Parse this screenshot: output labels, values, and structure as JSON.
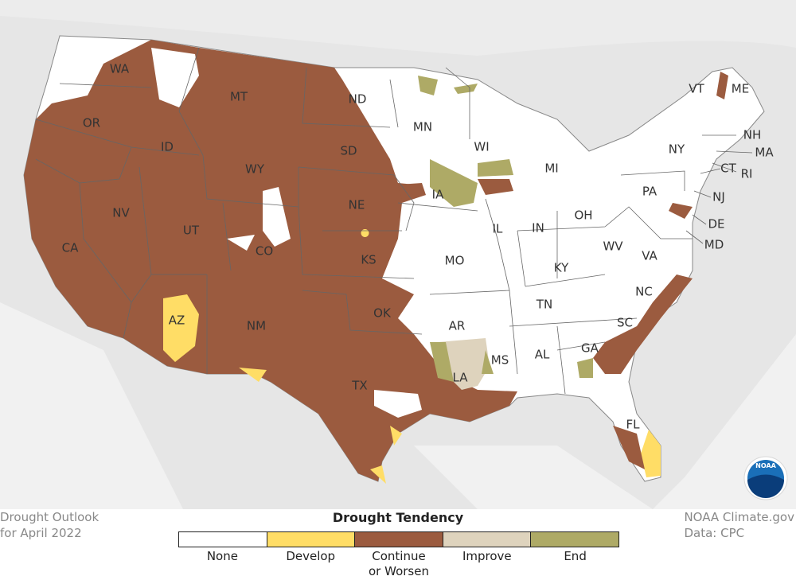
{
  "title": "Drought Outlook",
  "subtitle": "for April 2022",
  "credit": "NOAA Climate.gov",
  "source": "Data: CPC",
  "logo": "NOAA",
  "legend": {
    "title": "Drought Tendency",
    "items": [
      {
        "label": "None",
        "color": "#ffffff"
      },
      {
        "label": "Develop",
        "color": "#ffdd66"
      },
      {
        "label": "Continue or Worsen",
        "color": "#9b5b3f"
      },
      {
        "label": "Improve",
        "color": "#ded3bd"
      },
      {
        "label": "End",
        "color": "#aeaa66"
      }
    ]
  },
  "map": {
    "state_labels": [
      "WA",
      "OR",
      "ID",
      "MT",
      "WY",
      "SD",
      "ND",
      "NE",
      "NV",
      "UT",
      "CO",
      "KS",
      "CA",
      "AZ",
      "NM",
      "OK",
      "TX",
      "MN",
      "WI",
      "MI",
      "IA",
      "IL",
      "IN",
      "OH",
      "PA",
      "NY",
      "MO",
      "KY",
      "WV",
      "VA",
      "NC",
      "TN",
      "AR",
      "SC",
      "MS",
      "AL",
      "GA",
      "LA",
      "FL",
      "VT",
      "ME",
      "NH",
      "MA",
      "RI",
      "CT",
      "NJ",
      "DE",
      "MD"
    ]
  }
}
